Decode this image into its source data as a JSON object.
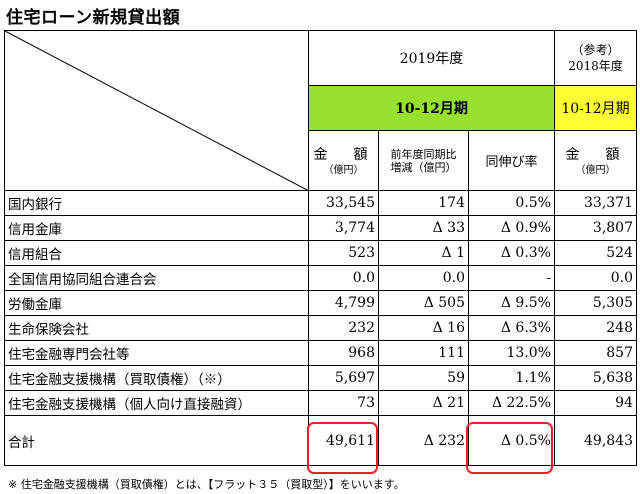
{
  "title": "住宅ローン新規貸出額",
  "header": {
    "year": "2019年度",
    "ref_label": "（参考）",
    "ref_year": "2018年度",
    "period": "10-12月期",
    "ref_period": "10-12月期",
    "col_amount": "金　額",
    "col_amount_unit": "（億円）",
    "col_yoy_line1": "前年度同期比",
    "col_yoy_line2": "増減（億円）",
    "col_rate": "同伸び率",
    "col_ref_amount": "金　額",
    "col_ref_amount_unit": "（億円）"
  },
  "rows": [
    {
      "name": "国内銀行",
      "amount": "33,545",
      "diff": "174",
      "rate": "0.5%",
      "ref": "33,371"
    },
    {
      "name": "信用金庫",
      "amount": "3,774",
      "diff": "Δ 33",
      "rate": "Δ 0.9%",
      "ref": "3,807"
    },
    {
      "name": "信用組合",
      "amount": "523",
      "diff": "Δ 1",
      "rate": "Δ 0.3%",
      "ref": "524"
    },
    {
      "name": "全国信用協同組合連合会",
      "amount": "0.0",
      "diff": "0.0",
      "rate": "-",
      "ref": "0.0"
    },
    {
      "name": "労働金庫",
      "amount": "4,799",
      "diff": "Δ 505",
      "rate": "Δ 9.5%",
      "ref": "5,305"
    },
    {
      "name": "生命保険会社",
      "amount": "232",
      "diff": "Δ 16",
      "rate": "Δ 6.3%",
      "ref": "248"
    },
    {
      "name": "住宅金融専門会社等",
      "amount": "968",
      "diff": "111",
      "rate": "13.0%",
      "ref": "857"
    },
    {
      "name": "住宅金融支援機構（買取債権）（※）",
      "amount": "5,697",
      "diff": "59",
      "rate": "1.1%",
      "ref": "5,638"
    },
    {
      "name": "住宅金融支援機構（個人向け直接融資）",
      "amount": "73",
      "diff": "Δ 21",
      "rate": "Δ 22.5%",
      "ref": "94"
    }
  ],
  "total": {
    "name": "合計",
    "amount": "49,611",
    "diff": "Δ 232",
    "rate": "Δ 0.5%",
    "ref": "49,843"
  },
  "note": "※ 住宅金融支援機構（買取債権）とは、【フラット３５（買取型）】をいいます。",
  "colors": {
    "period_green": "#98E02E",
    "ref_yellow": "#FFFF33",
    "highlight_red": "#e8202a"
  }
}
